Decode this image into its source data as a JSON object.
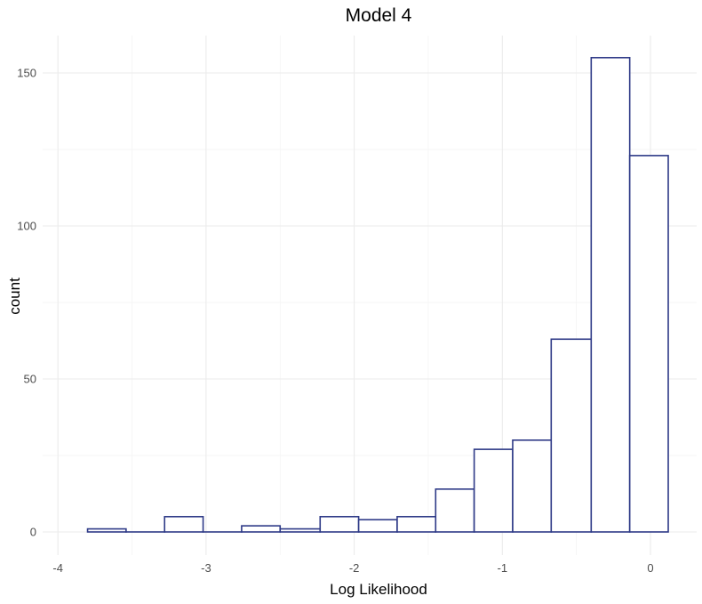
{
  "chart_data": {
    "type": "bar",
    "title": "Model 4",
    "xlabel": "Log Likelihood",
    "ylabel": "count",
    "xlim": [
      -4,
      0.3
    ],
    "ylim": [
      0,
      160
    ],
    "x_ticks": [
      -4,
      -3,
      -2,
      -1,
      0
    ],
    "x_tick_labels": [
      "-4",
      "-3",
      "-2",
      "-1",
      "0"
    ],
    "y_ticks": [
      0,
      50,
      100,
      150
    ],
    "y_tick_labels": [
      "0",
      "50",
      "100",
      "150"
    ],
    "grid": true,
    "bin_edges": [
      -3.8,
      -3.54,
      -3.28,
      -3.02,
      -2.76,
      -2.5,
      -2.23,
      -1.97,
      -1.71,
      -1.45,
      -1.19,
      -0.93,
      -0.67,
      -0.4,
      -0.14,
      0.12
    ],
    "values": [
      1,
      0,
      5,
      0,
      2,
      1,
      5,
      4,
      5,
      14,
      27,
      30,
      63,
      155,
      123
    ],
    "bar_fill": "#ffffff",
    "bar_outline": "#2e3a87",
    "background": "#ffffff",
    "grid_color": "#ebebeb"
  }
}
